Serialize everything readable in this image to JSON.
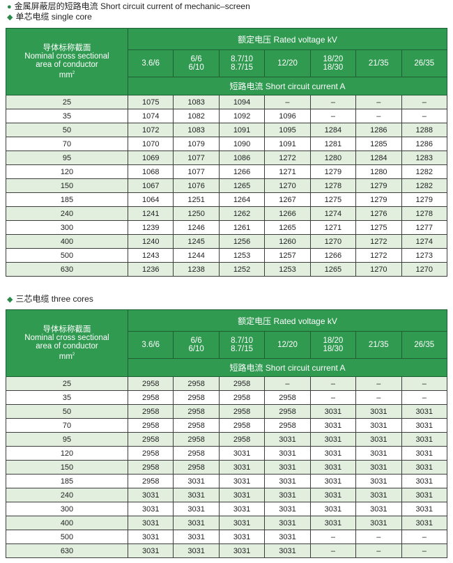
{
  "heading": {
    "bullet_icon": "circle-bullet-icon",
    "text": "金属屏蔽层的短路电流 Short circuit current of mechanic–screen"
  },
  "colors": {
    "header_green": "#2f9a50",
    "alt_row": "#e2efdf"
  },
  "header": {
    "conductor_label_cn": "导体标称截面",
    "conductor_label_en1": "Nominal cross sectional",
    "conductor_label_en2": "area of conductor",
    "conductor_unit": "mm",
    "conductor_unit_sup": "2",
    "rated_voltage": "额定电压 Rated voltage kV",
    "voltages": [
      [
        "3.6/6"
      ],
      [
        "6/6",
        "6/10"
      ],
      [
        "8.7/10",
        "8.7/15"
      ],
      [
        "12/20"
      ],
      [
        "18/20",
        "18/30"
      ],
      [
        "21/35"
      ],
      [
        "26/35"
      ]
    ],
    "short_circuit": "短路电流 Short circuit current  A"
  },
  "tables": [
    {
      "subtitle": "单芯电缆  single core",
      "bullet_icon": "diamond-bullet-icon",
      "rows": [
        [
          "25",
          "1075",
          "1083",
          "1094",
          "–",
          "–",
          "–",
          "–"
        ],
        [
          "35",
          "1074",
          "1082",
          "1092",
          "1096",
          "–",
          "–",
          "–"
        ],
        [
          "50",
          "1072",
          "1083",
          "1091",
          "1095",
          "1284",
          "1286",
          "1288"
        ],
        [
          "70",
          "1070",
          "1079",
          "1090",
          "1091",
          "1281",
          "1285",
          "1286"
        ],
        [
          "95",
          "1069",
          "1077",
          "1086",
          "1272",
          "1280",
          "1284",
          "1283"
        ],
        [
          "120",
          "1068",
          "1077",
          "1266",
          "1271",
          "1279",
          "1280",
          "1282"
        ],
        [
          "150",
          "1067",
          "1076",
          "1265",
          "1270",
          "1278",
          "1279",
          "1282"
        ],
        [
          "185",
          "1064",
          "1251",
          "1264",
          "1267",
          "1275",
          "1279",
          "1279"
        ],
        [
          "240",
          "1241",
          "1250",
          "1262",
          "1266",
          "1274",
          "1276",
          "1278"
        ],
        [
          "300",
          "1239",
          "1246",
          "1261",
          "1265",
          "1271",
          "1275",
          "1277"
        ],
        [
          "400",
          "1240",
          "1245",
          "1256",
          "1260",
          "1270",
          "1272",
          "1274"
        ],
        [
          "500",
          "1243",
          "1244",
          "1253",
          "1257",
          "1266",
          "1272",
          "1273"
        ],
        [
          "630",
          "1236",
          "1238",
          "1252",
          "1253",
          "1265",
          "1270",
          "1270"
        ]
      ]
    },
    {
      "subtitle": "三芯电缆  three cores",
      "bullet_icon": "diamond-bullet-icon",
      "rows": [
        [
          "25",
          "2958",
          "2958",
          "2958",
          "–",
          "–",
          "–",
          "–"
        ],
        [
          "35",
          "2958",
          "2958",
          "2958",
          "2958",
          "–",
          "–",
          "–"
        ],
        [
          "50",
          "2958",
          "2958",
          "2958",
          "2958",
          "3031",
          "3031",
          "3031"
        ],
        [
          "70",
          "2958",
          "2958",
          "2958",
          "2958",
          "3031",
          "3031",
          "3031"
        ],
        [
          "95",
          "2958",
          "2958",
          "2958",
          "3031",
          "3031",
          "3031",
          "3031"
        ],
        [
          "120",
          "2958",
          "2958",
          "3031",
          "3031",
          "3031",
          "3031",
          "3031"
        ],
        [
          "150",
          "2958",
          "2958",
          "3031",
          "3031",
          "3031",
          "3031",
          "3031"
        ],
        [
          "185",
          "2958",
          "3031",
          "3031",
          "3031",
          "3031",
          "3031",
          "3031"
        ],
        [
          "240",
          "3031",
          "3031",
          "3031",
          "3031",
          "3031",
          "3031",
          "3031"
        ],
        [
          "300",
          "3031",
          "3031",
          "3031",
          "3031",
          "3031",
          "3031",
          "3031"
        ],
        [
          "400",
          "3031",
          "3031",
          "3031",
          "3031",
          "3031",
          "3031",
          "3031"
        ],
        [
          "500",
          "3031",
          "3031",
          "3031",
          "3031",
          "–",
          "–",
          "–"
        ],
        [
          "630",
          "3031",
          "3031",
          "3031",
          "3031",
          "–",
          "–",
          "–"
        ]
      ]
    }
  ]
}
